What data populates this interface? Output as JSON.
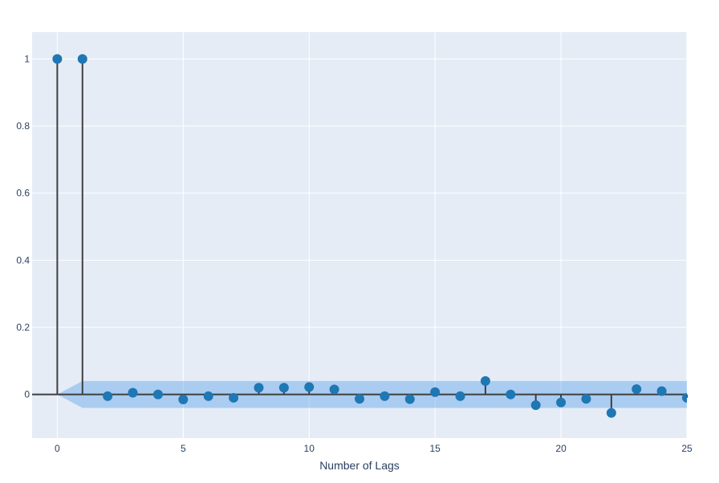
{
  "chart_data": {
    "type": "scatter",
    "subtype": "stem",
    "title": "",
    "xlabel": "Number of Lags",
    "ylabel": "",
    "xlim": [
      -1,
      25
    ],
    "ylim": [
      -0.13,
      1.08
    ],
    "x_ticks": [
      0,
      5,
      10,
      15,
      20,
      25
    ],
    "y_ticks": [
      0,
      0.2,
      0.4,
      0.6,
      0.8,
      1
    ],
    "grid": true,
    "legend": "none",
    "x": [
      0,
      1,
      2,
      3,
      4,
      5,
      6,
      7,
      8,
      9,
      10,
      11,
      12,
      13,
      14,
      15,
      16,
      17,
      18,
      19,
      20,
      21,
      22,
      23,
      24,
      25
    ],
    "values": [
      1.0,
      1.0,
      -0.005,
      0.005,
      0.0,
      -0.015,
      -0.005,
      -0.01,
      0.02,
      0.02,
      0.022,
      0.015,
      -0.013,
      -0.005,
      -0.014,
      0.007,
      -0.005,
      0.04,
      0.0,
      -0.032,
      -0.024,
      -0.013,
      -0.055,
      0.016,
      0.01,
      -0.01
    ],
    "confidence_band": {
      "x": [
        0,
        1,
        25
      ],
      "upper": [
        0.0,
        0.04,
        0.04
      ],
      "lower": [
        0.0,
        -0.04,
        -0.04
      ]
    },
    "colors": {
      "marker": "#1f77b4",
      "stem": "#3f3f3f",
      "band": "rgba(32,128,230,0.3)",
      "plot_bg": "#e5ecf6",
      "grid": "#ffffff"
    }
  }
}
